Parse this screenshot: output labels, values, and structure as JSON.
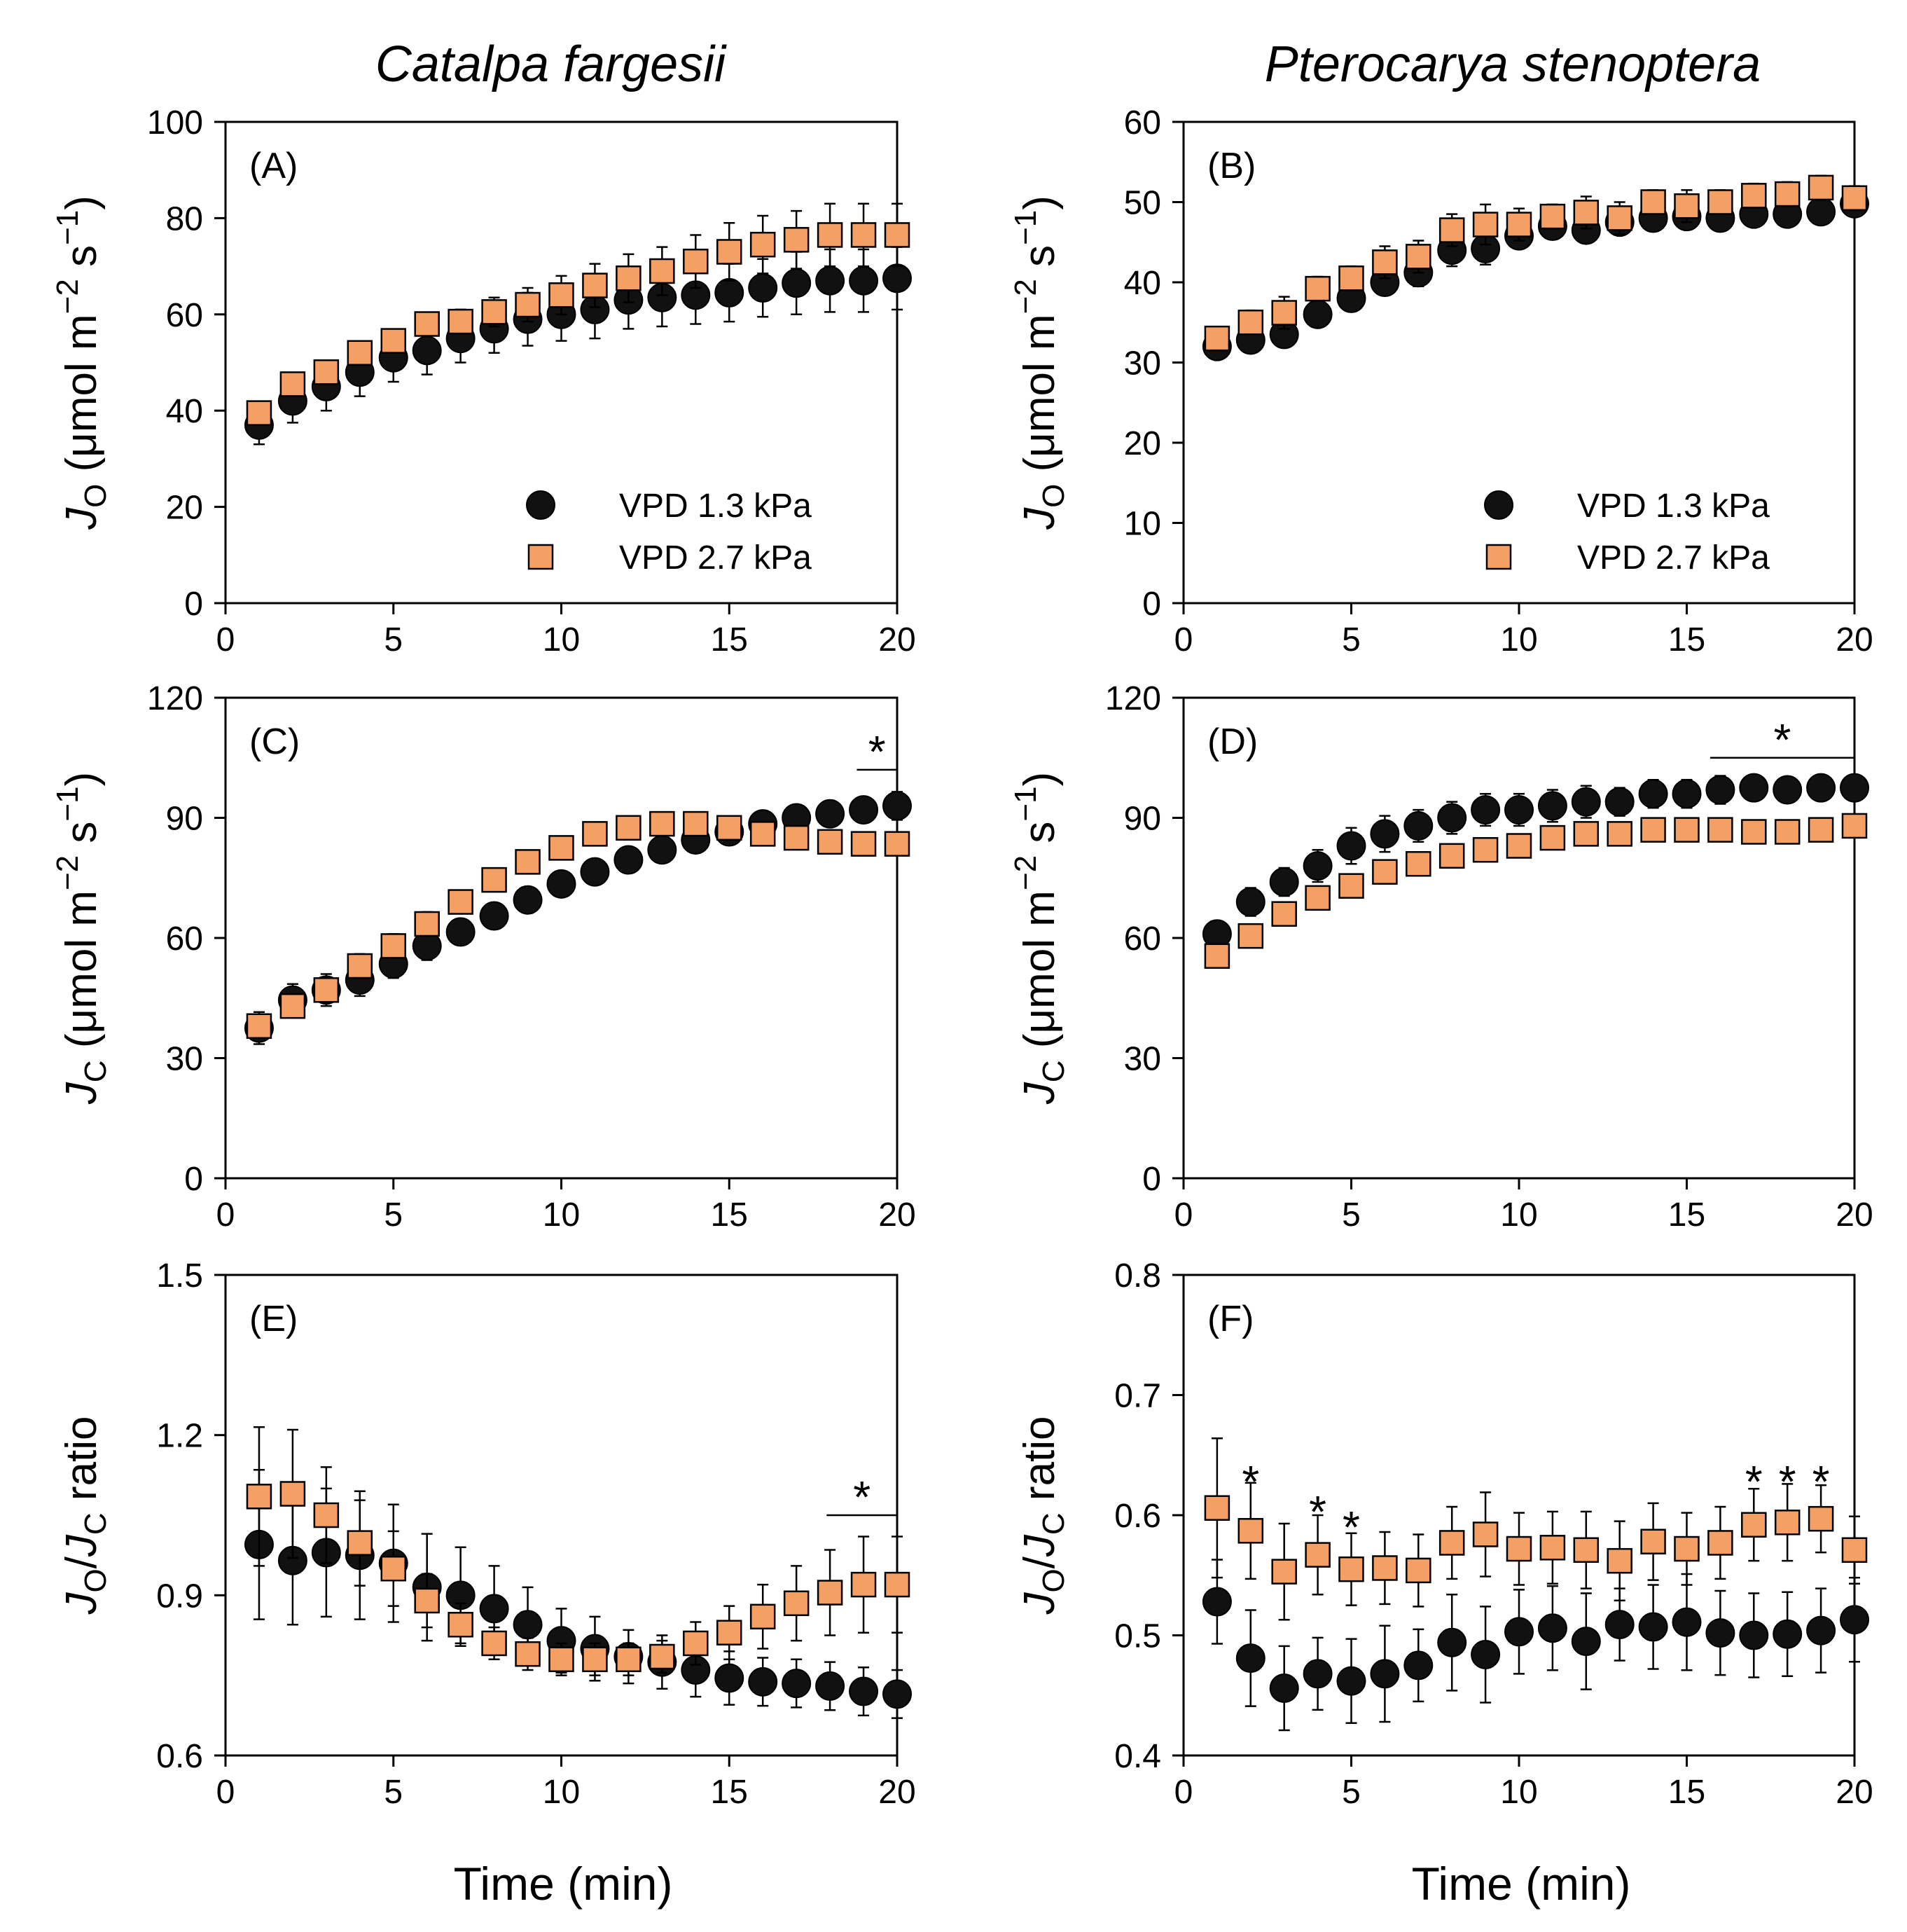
{
  "figure": {
    "species": [
      "Catalpa fargesii",
      "Pterocarya stenoptera"
    ],
    "x_label": "Time (min)",
    "legend": [
      {
        "label": "VPD 1.3 kPa",
        "marker": "circle",
        "color": "#111111"
      },
      {
        "label": "VPD 2.7 kPa",
        "marker": "square",
        "color": "#F4A064"
      }
    ],
    "colors": {
      "low_vpd": "#111111",
      "high_vpd": "#F4A064",
      "edge": "#000000"
    }
  },
  "chart_data": [
    {
      "type": "scatter",
      "panel": "(A)",
      "species": "Catalpa fargesii",
      "ylabel": {
        "main": "J",
        "sub": "O",
        "rest": " (μmol m",
        "sup1": "−2",
        "mid": " s",
        "sup2": "−1",
        "end": ")"
      },
      "xlim": [
        0,
        20
      ],
      "ylim": [
        0,
        100
      ],
      "xticks": [
        "0",
        "5",
        "10",
        "15",
        "20"
      ],
      "yticks": [
        "0",
        "20",
        "40",
        "60",
        "80",
        "100"
      ],
      "x": [
        1,
        2,
        3,
        4,
        5,
        6,
        7,
        8,
        9,
        10,
        11,
        12,
        13,
        14,
        15,
        16,
        17,
        18,
        19,
        20
      ],
      "series": [
        {
          "name": "VPD 1.3 kPa",
          "values": [
            37,
            42,
            45,
            48,
            51,
            52.5,
            55,
            57,
            59,
            60,
            61,
            63,
            63.5,
            64,
            64.5,
            65.5,
            66.5,
            67,
            67,
            67.5
          ],
          "errors": [
            4,
            4.5,
            5,
            5,
            5,
            5,
            5,
            5,
            5.5,
            5.5,
            6,
            6,
            6,
            6,
            6,
            6,
            6.5,
            6.5,
            6.5,
            6.5
          ]
        },
        {
          "name": "VPD 2.7 kPa",
          "values": [
            39.5,
            45.5,
            48,
            52,
            54.5,
            58,
            58.5,
            60.5,
            62,
            64,
            66,
            67.5,
            69,
            71,
            73,
            74.5,
            75.5,
            76.5,
            76.5,
            76.5
          ],
          "errors": [
            1,
            1,
            1,
            1.5,
            2,
            2,
            2.5,
            3,
            3.5,
            4,
            4.5,
            5,
            5,
            5.5,
            6,
            6,
            6,
            6.5,
            6.5,
            6.5
          ]
        }
      ],
      "legend_on": true,
      "significance": []
    },
    {
      "type": "scatter",
      "panel": "(B)",
      "species": "Pterocarya stenoptera",
      "ylabel": {
        "main": "J",
        "sub": "O",
        "rest": " (μmol m",
        "sup1": "−2",
        "mid": " s",
        "sup2": "−1",
        "end": ")"
      },
      "xlim": [
        0,
        20
      ],
      "ylim": [
        0,
        60
      ],
      "xticks": [
        "0",
        "5",
        "10",
        "15",
        "20"
      ],
      "yticks": [
        "0",
        "10",
        "20",
        "30",
        "40",
        "50",
        "60"
      ],
      "x": [
        1,
        2,
        3,
        4,
        5,
        6,
        7,
        8,
        9,
        10,
        11,
        12,
        13,
        14,
        15,
        16,
        17,
        18,
        19,
        20
      ],
      "series": [
        {
          "name": "VPD 1.3 kPa",
          "values": [
            32,
            32.8,
            33.5,
            36,
            38,
            40,
            41.2,
            44,
            44.2,
            45.8,
            47,
            46.5,
            47.5,
            48,
            48.2,
            48,
            48.5,
            48.5,
            48.8,
            49.8
          ],
          "errors": [
            1.2,
            1.2,
            1.3,
            1.2,
            1.5,
            1.5,
            1.7,
            2,
            2,
            1.2,
            1.2,
            1.5,
            1.5,
            1.3,
            1.3,
            1.3,
            1.5,
            1.5,
            1.5,
            1.5
          ]
        },
        {
          "name": "VPD 2.7 kPa",
          "values": [
            33,
            35,
            36.2,
            39.2,
            40.5,
            42.5,
            43.2,
            46.5,
            47.2,
            47.2,
            48.2,
            48.7,
            48,
            50,
            49.5,
            50,
            50.8,
            51,
            51.8,
            50.5
          ],
          "errors": [
            1.2,
            1.5,
            2,
            1.5,
            1.5,
            2,
            2,
            2,
            2.5,
            2,
            1.5,
            2,
            2,
            1.5,
            2,
            1.5,
            1.5,
            1.5,
            1.5,
            1.5
          ]
        }
      ],
      "legend_on": true,
      "significance": []
    },
    {
      "type": "scatter",
      "panel": "(C)",
      "species": "Catalpa fargesii",
      "ylabel": {
        "main": "J",
        "sub": "C",
        "rest": " (μmol m",
        "sup1": "−2",
        "mid": " s",
        "sup2": "−1",
        "end": ")"
      },
      "xlim": [
        0,
        20
      ],
      "ylim": [
        0,
        120
      ],
      "xticks": [
        "0",
        "5",
        "10",
        "15",
        "20"
      ],
      "yticks": [
        "0",
        "30",
        "60",
        "90",
        "120"
      ],
      "x": [
        1,
        2,
        3,
        4,
        5,
        6,
        7,
        8,
        9,
        10,
        11,
        12,
        13,
        14,
        15,
        16,
        17,
        18,
        19,
        20
      ],
      "series": [
        {
          "name": "VPD 1.3 kPa",
          "values": [
            37.5,
            44.5,
            47,
            49.5,
            53.5,
            58,
            61.5,
            65.5,
            69.5,
            73.5,
            76.5,
            79.5,
            82,
            84.5,
            86.5,
            88.5,
            90,
            91,
            92,
            93
          ],
          "errors": [
            4,
            4,
            4,
            4,
            3.5,
            3.5,
            3,
            3,
            2.5,
            2.5,
            2.5,
            2.5,
            2.5,
            2.5,
            2.5,
            2.5,
            2.5,
            2.5,
            3,
            3.5
          ]
        },
        {
          "name": "VPD 2.7 kPa",
          "values": [
            38,
            43,
            47,
            53,
            58,
            63.5,
            69,
            74.5,
            79,
            82.5,
            86,
            87.5,
            88.5,
            88.5,
            87.5,
            86,
            85,
            84,
            83.5,
            83.5
          ],
          "errors": [
            2.5,
            2.5,
            3,
            3,
            3,
            3,
            2.5,
            2,
            2,
            2,
            2,
            2,
            2,
            2,
            2,
            2,
            2,
            2,
            2,
            2
          ]
        }
      ],
      "legend_on": false,
      "significance": [
        {
          "x1": 18.8,
          "x2": 20,
          "y": 102,
          "label": "*"
        }
      ]
    },
    {
      "type": "scatter",
      "panel": "(D)",
      "species": "Pterocarya stenoptera",
      "ylabel": {
        "main": "J",
        "sub": "C",
        "rest": " (μmol m",
        "sup1": "−2",
        "mid": " s",
        "sup2": "−1",
        "end": ")"
      },
      "xlim": [
        0,
        20
      ],
      "ylim": [
        0,
        120
      ],
      "xticks": [
        "0",
        "5",
        "10",
        "15",
        "20"
      ],
      "yticks": [
        "0",
        "30",
        "60",
        "90",
        "120"
      ],
      "x": [
        1,
        2,
        3,
        4,
        5,
        6,
        7,
        8,
        9,
        10,
        11,
        12,
        13,
        14,
        15,
        16,
        17,
        18,
        19,
        20
      ],
      "series": [
        {
          "name": "VPD 1.3 kPa",
          "values": [
            61,
            69,
            74,
            78,
            83,
            86,
            88,
            90,
            92,
            92,
            93,
            94,
            94,
            96,
            96,
            97,
            97.5,
            97,
            97.5,
            97.5
          ],
          "errors": [
            3,
            3.5,
            3.5,
            4,
            4.5,
            4.5,
            4,
            4,
            4,
            4,
            4,
            4,
            3.5,
            3.5,
            3.5,
            3.5,
            3,
            3,
            3,
            3
          ]
        },
        {
          "name": "VPD 2.7 kPa",
          "values": [
            55.5,
            60.5,
            66,
            70,
            73,
            76.5,
            78.5,
            80.5,
            82,
            83,
            85,
            86,
            86,
            87,
            87,
            87,
            86.5,
            86.5,
            87,
            88
          ],
          "errors": [
            2,
            2,
            2,
            2,
            2,
            2,
            2,
            2,
            2,
            2,
            2,
            2,
            2,
            2,
            2,
            2,
            2,
            2,
            2,
            2
          ]
        }
      ],
      "legend_on": false,
      "significance": [
        {
          "x1": 15.7,
          "x2": 20,
          "y": 105,
          "label": "*"
        }
      ]
    },
    {
      "type": "scatter",
      "panel": "(E)",
      "species": "Catalpa fargesii",
      "ylabel": {
        "main": "J",
        "sub": "O",
        "rest": "/",
        "main2": "J",
        "sub2": "C",
        "end": " ratio"
      },
      "xlim": [
        0,
        20
      ],
      "ylim": [
        0.6,
        1.5
      ],
      "xticks": [
        "0",
        "5",
        "10",
        "15",
        "20"
      ],
      "yticks": [
        "0.6",
        "0.9",
        "1.2",
        "1.5"
      ],
      "x": [
        1,
        2,
        3,
        4,
        5,
        6,
        7,
        8,
        9,
        10,
        11,
        12,
        13,
        14,
        15,
        16,
        17,
        18,
        19,
        20
      ],
      "series": [
        {
          "name": "VPD 1.3 kPa",
          "values": [
            0.995,
            0.965,
            0.98,
            0.975,
            0.96,
            0.915,
            0.9,
            0.875,
            0.845,
            0.815,
            0.8,
            0.785,
            0.775,
            0.76,
            0.745,
            0.738,
            0.735,
            0.73,
            0.72,
            0.715
          ],
          "errors": [
            0.14,
            0.12,
            0.12,
            0.12,
            0.11,
            0.1,
            0.09,
            0.08,
            0.07,
            0.06,
            0.06,
            0.05,
            0.05,
            0.05,
            0.05,
            0.045,
            0.045,
            0.045,
            0.045,
            0.045
          ]
        },
        {
          "name": "VPD 2.7 kPa",
          "values": [
            1.085,
            1.09,
            1.05,
            0.998,
            0.95,
            0.89,
            0.845,
            0.81,
            0.79,
            0.78,
            0.78,
            0.78,
            0.785,
            0.81,
            0.83,
            0.86,
            0.885,
            0.905,
            0.92,
            0.92
          ],
          "errors": [
            0.13,
            0.12,
            0.09,
            0.08,
            0.07,
            0.05,
            0.04,
            0.03,
            0.03,
            0.03,
            0.03,
            0.03,
            0.03,
            0.04,
            0.05,
            0.06,
            0.07,
            0.08,
            0.09,
            0.09
          ]
        }
      ],
      "legend_on": false,
      "significance": [
        {
          "x1": 17.9,
          "x2": 20,
          "y": 1.05,
          "label": "*"
        }
      ]
    },
    {
      "type": "scatter",
      "panel": "(F)",
      "species": "Pterocarya stenoptera",
      "ylabel": {
        "main": "J",
        "sub": "O",
        "rest": "/",
        "main2": "J",
        "sub2": "C",
        "end": " ratio"
      },
      "xlim": [
        0,
        20
      ],
      "ylim": [
        0.4,
        0.8
      ],
      "xticks": [
        "0",
        "5",
        "10",
        "15",
        "20"
      ],
      "yticks": [
        "0.4",
        "0.5",
        "0.6",
        "0.7",
        "0.8"
      ],
      "x": [
        1,
        2,
        3,
        4,
        5,
        6,
        7,
        8,
        9,
        10,
        11,
        12,
        13,
        14,
        15,
        16,
        17,
        18,
        19,
        20
      ],
      "series": [
        {
          "name": "VPD 1.3 kPa",
          "values": [
            0.528,
            0.481,
            0.456,
            0.468,
            0.462,
            0.468,
            0.475,
            0.494,
            0.484,
            0.503,
            0.506,
            0.495,
            0.509,
            0.507,
            0.511,
            0.502,
            0.5,
            0.501,
            0.504,
            0.513
          ],
          "errors": [
            0.035,
            0.04,
            0.035,
            0.03,
            0.035,
            0.04,
            0.03,
            0.04,
            0.04,
            0.035,
            0.035,
            0.04,
            0.03,
            0.035,
            0.04,
            0.035,
            0.035,
            0.035,
            0.035,
            0.035
          ]
        },
        {
          "name": "VPD 2.7 kPa",
          "values": [
            0.606,
            0.587,
            0.553,
            0.567,
            0.555,
            0.556,
            0.554,
            0.577,
            0.584,
            0.572,
            0.573,
            0.571,
            0.562,
            0.578,
            0.572,
            0.577,
            0.592,
            0.594,
            0.597,
            0.571
          ],
          "errors": [
            0.058,
            0.04,
            0.04,
            0.033,
            0.03,
            0.03,
            0.03,
            0.03,
            0.035,
            0.03,
            0.03,
            0.032,
            0.033,
            0.032,
            0.03,
            0.03,
            0.03,
            0.032,
            0.028,
            0.028
          ]
        }
      ],
      "legend_on": false,
      "significance": [
        {
          "x": 2,
          "y": 0.635,
          "label": "*"
        },
        {
          "x": 4,
          "y": 0.61,
          "label": "*"
        },
        {
          "x": 5,
          "y": 0.597,
          "label": "*"
        },
        {
          "x": 17,
          "y": 0.635,
          "label": "*"
        },
        {
          "x": 18,
          "y": 0.635,
          "label": "*"
        },
        {
          "x": 19,
          "y": 0.635,
          "label": "*"
        }
      ]
    }
  ]
}
